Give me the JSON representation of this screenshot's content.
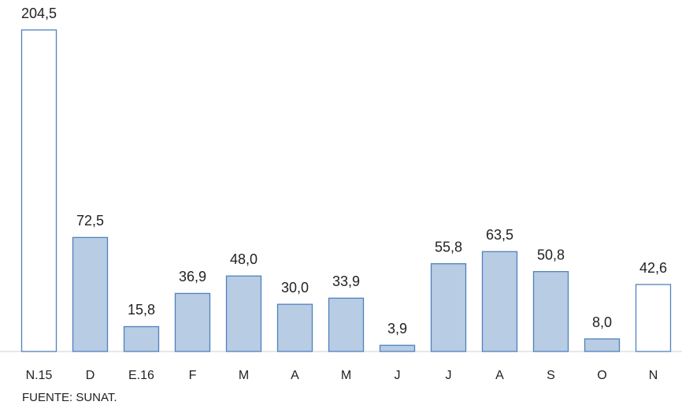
{
  "chart_data": {
    "type": "bar",
    "categories": [
      "N.15",
      "D",
      "E.16",
      "F",
      "M",
      "A",
      "M",
      "J",
      "J",
      "A",
      "S",
      "O",
      "N"
    ],
    "values": [
      204.5,
      72.5,
      15.8,
      36.9,
      48.0,
      30.0,
      33.9,
      3.9,
      55.8,
      63.5,
      50.8,
      8.0,
      42.6
    ],
    "value_labels": [
      "204,5",
      "72,5",
      "15,8",
      "36,9",
      "48,0",
      "30,0",
      "33,9",
      "3,9",
      "55,8",
      "63,5",
      "50,8",
      "8,0",
      "42,6"
    ],
    "colors": [
      "#ffffff",
      "#b8cce4",
      "#b8cce4",
      "#b8cce4",
      "#b8cce4",
      "#b8cce4",
      "#b8cce4",
      "#b8cce4",
      "#b8cce4",
      "#b8cce4",
      "#b8cce4",
      "#b8cce4",
      "#ffffff"
    ],
    "edge_color": "#4f81bd",
    "source": "FUENTE: SUNAT."
  }
}
